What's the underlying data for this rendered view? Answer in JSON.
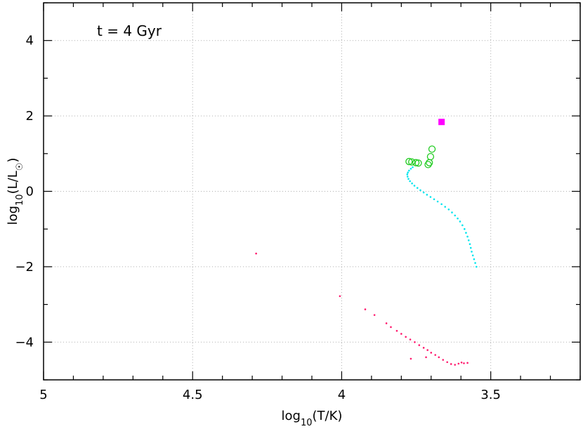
{
  "chart_data": {
    "type": "scatter",
    "annotation": "t = 4 Gyr",
    "xlabel": {
      "base": "log",
      "sub": "10",
      "rest": "(T/K)"
    },
    "ylabel": {
      "base": "log",
      "sub": "10",
      "rest": "(L/L",
      "sun": "☉",
      "close": ")"
    },
    "xlim": [
      5.0,
      3.2
    ],
    "ylim": [
      -5.0,
      5.0
    ],
    "x_reversed": true,
    "x_ticks": [
      5,
      4.5,
      4,
      3.5
    ],
    "x_tick_labels": [
      "5",
      "4.5",
      "4",
      "3.5"
    ],
    "y_ticks": [
      -4,
      -2,
      0,
      2,
      4
    ],
    "y_tick_labels": [
      "−4",
      "−2",
      "0",
      "2",
      "4"
    ],
    "grid": true,
    "colors": {
      "main_sequence": "#00e5ee",
      "giants": "#22cc22",
      "agb": "#ff00ff",
      "white_dwarfs": "#ff1a6e"
    },
    "series": [
      {
        "marker": "dot",
        "color": "#00e5ee",
        "points": [
          [
            3.548,
            -2.0
          ],
          [
            3.552,
            -1.9
          ],
          [
            3.556,
            -1.8
          ],
          [
            3.56,
            -1.7
          ],
          [
            3.564,
            -1.6
          ],
          [
            3.567,
            -1.5
          ],
          [
            3.57,
            -1.4
          ],
          [
            3.574,
            -1.3
          ],
          [
            3.578,
            -1.2
          ],
          [
            3.583,
            -1.1
          ],
          [
            3.588,
            -1.0
          ],
          [
            3.595,
            -0.9
          ],
          [
            3.603,
            -0.8
          ],
          [
            3.611,
            -0.72
          ],
          [
            3.62,
            -0.64
          ],
          [
            3.63,
            -0.56
          ],
          [
            3.641,
            -0.48
          ],
          [
            3.653,
            -0.41
          ],
          [
            3.665,
            -0.34
          ],
          [
            3.678,
            -0.27
          ],
          [
            3.69,
            -0.21
          ],
          [
            3.702,
            -0.15
          ],
          [
            3.714,
            -0.09
          ],
          [
            3.725,
            -0.03
          ],
          [
            3.736,
            0.03
          ],
          [
            3.746,
            0.09
          ],
          [
            3.756,
            0.15
          ],
          [
            3.764,
            0.21
          ],
          [
            3.771,
            0.27
          ],
          [
            3.776,
            0.33
          ],
          [
            3.779,
            0.39
          ],
          [
            3.78,
            0.45
          ],
          [
            3.778,
            0.5
          ],
          [
            3.774,
            0.55
          ],
          [
            3.768,
            0.6
          ],
          [
            3.762,
            0.64
          ]
        ]
      },
      {
        "marker": "circle",
        "color": "#22cc22",
        "points": [
          [
            3.774,
            0.79
          ],
          [
            3.765,
            0.78
          ],
          [
            3.751,
            0.76
          ],
          [
            3.743,
            0.75
          ],
          [
            3.71,
            0.71
          ],
          [
            3.706,
            0.76
          ],
          [
            3.702,
            0.92
          ],
          [
            3.697,
            1.12
          ]
        ]
      },
      {
        "marker": "square",
        "color": "#ff00ff",
        "points": [
          [
            3.665,
            1.84
          ]
        ]
      },
      {
        "marker": "dot",
        "color": "#ff1a6e",
        "points": [
          [
            4.287,
            -1.65
          ],
          [
            4.006,
            -2.78
          ],
          [
            3.921,
            -3.13
          ],
          [
            3.89,
            -3.28
          ],
          [
            3.85,
            -3.5
          ],
          [
            3.835,
            -3.6
          ],
          [
            3.815,
            -3.7
          ],
          [
            3.8,
            -3.78
          ],
          [
            3.785,
            -3.86
          ],
          [
            3.77,
            -3.93
          ],
          [
            3.755,
            -4.0
          ],
          [
            3.74,
            -4.08
          ],
          [
            3.725,
            -4.15
          ],
          [
            3.712,
            -4.21
          ],
          [
            3.7,
            -4.28
          ],
          [
            3.686,
            -4.34
          ],
          [
            3.674,
            -4.4
          ],
          [
            3.66,
            -4.47
          ],
          [
            3.646,
            -4.53
          ],
          [
            3.633,
            -4.58
          ],
          [
            3.62,
            -4.6
          ],
          [
            3.608,
            -4.57
          ],
          [
            3.598,
            -4.54
          ],
          [
            3.59,
            -4.56
          ],
          [
            3.578,
            -4.55
          ],
          [
            3.768,
            -4.44
          ],
          [
            3.717,
            -4.4
          ]
        ]
      }
    ]
  }
}
